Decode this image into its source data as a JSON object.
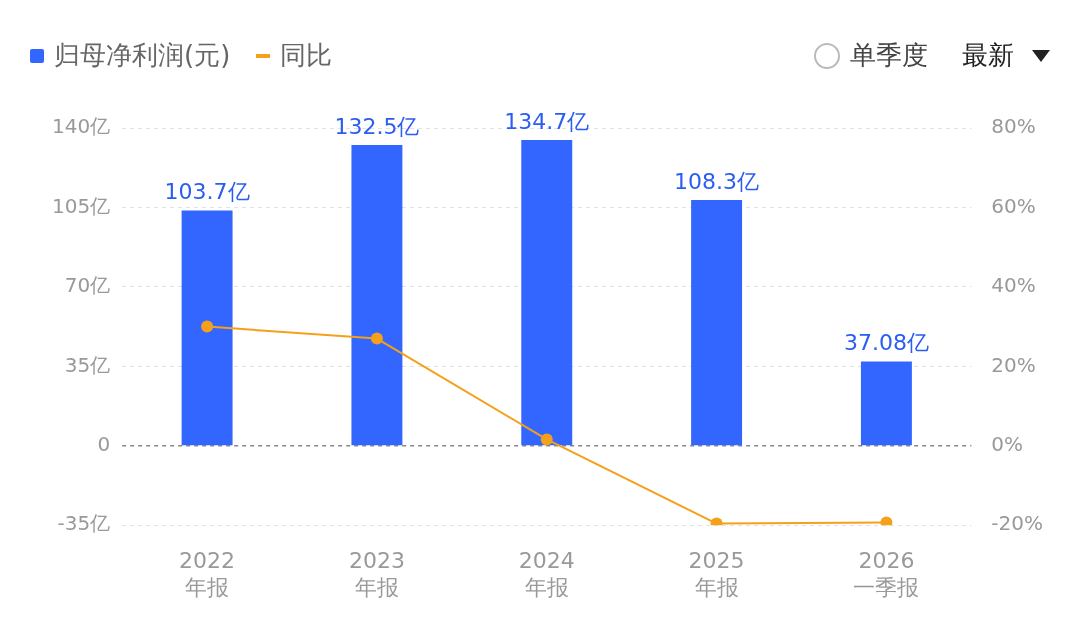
{
  "chart_data": {
    "type": "bar",
    "categories": [
      "2022\n年报",
      "2023\n年报",
      "2024\n年报",
      "2025\n年报",
      "2026\n一季报"
    ],
    "series": [
      {
        "name": "归母净利润(元)",
        "color": "#3366ff",
        "values": [
          103.7,
          132.5,
          134.7,
          108.3,
          37.08
        ],
        "value_labels": [
          "103.7亿",
          "132.5亿",
          "134.7亿",
          "108.3亿",
          "37.08亿"
        ]
      },
      {
        "name": "同比",
        "type": "line",
        "axis": "y2",
        "color": "#f5a01a",
        "marker": "circle",
        "values": [
          30,
          27,
          1.6,
          -19.6,
          -19.3
        ]
      }
    ],
    "ylim": [
      -35,
      140
    ],
    "yticks": [
      {
        "value": -35,
        "label": "-35亿"
      },
      {
        "value": 0,
        "label": "0"
      },
      {
        "value": 35,
        "label": "35亿"
      },
      {
        "value": 70,
        "label": "70亿"
      },
      {
        "value": 105,
        "label": "105亿"
      },
      {
        "value": 140,
        "label": "140亿"
      }
    ],
    "y2lim": [
      -20,
      80
    ],
    "y2ticks": [
      {
        "value": -20,
        "label": "-20%"
      },
      {
        "value": 0,
        "label": "0%"
      },
      {
        "value": 20,
        "label": "20%"
      },
      {
        "value": 40,
        "label": "40%"
      },
      {
        "value": 60,
        "label": "60%"
      },
      {
        "value": 80,
        "label": "80%"
      }
    ],
    "grid": "y",
    "ref_lines": [
      {
        "axis": "y",
        "value": 0,
        "color": "#888888",
        "line_style": "dashed"
      }
    ],
    "legend": "top left",
    "annotations": [
      "单季度",
      "最新"
    ]
  }
}
